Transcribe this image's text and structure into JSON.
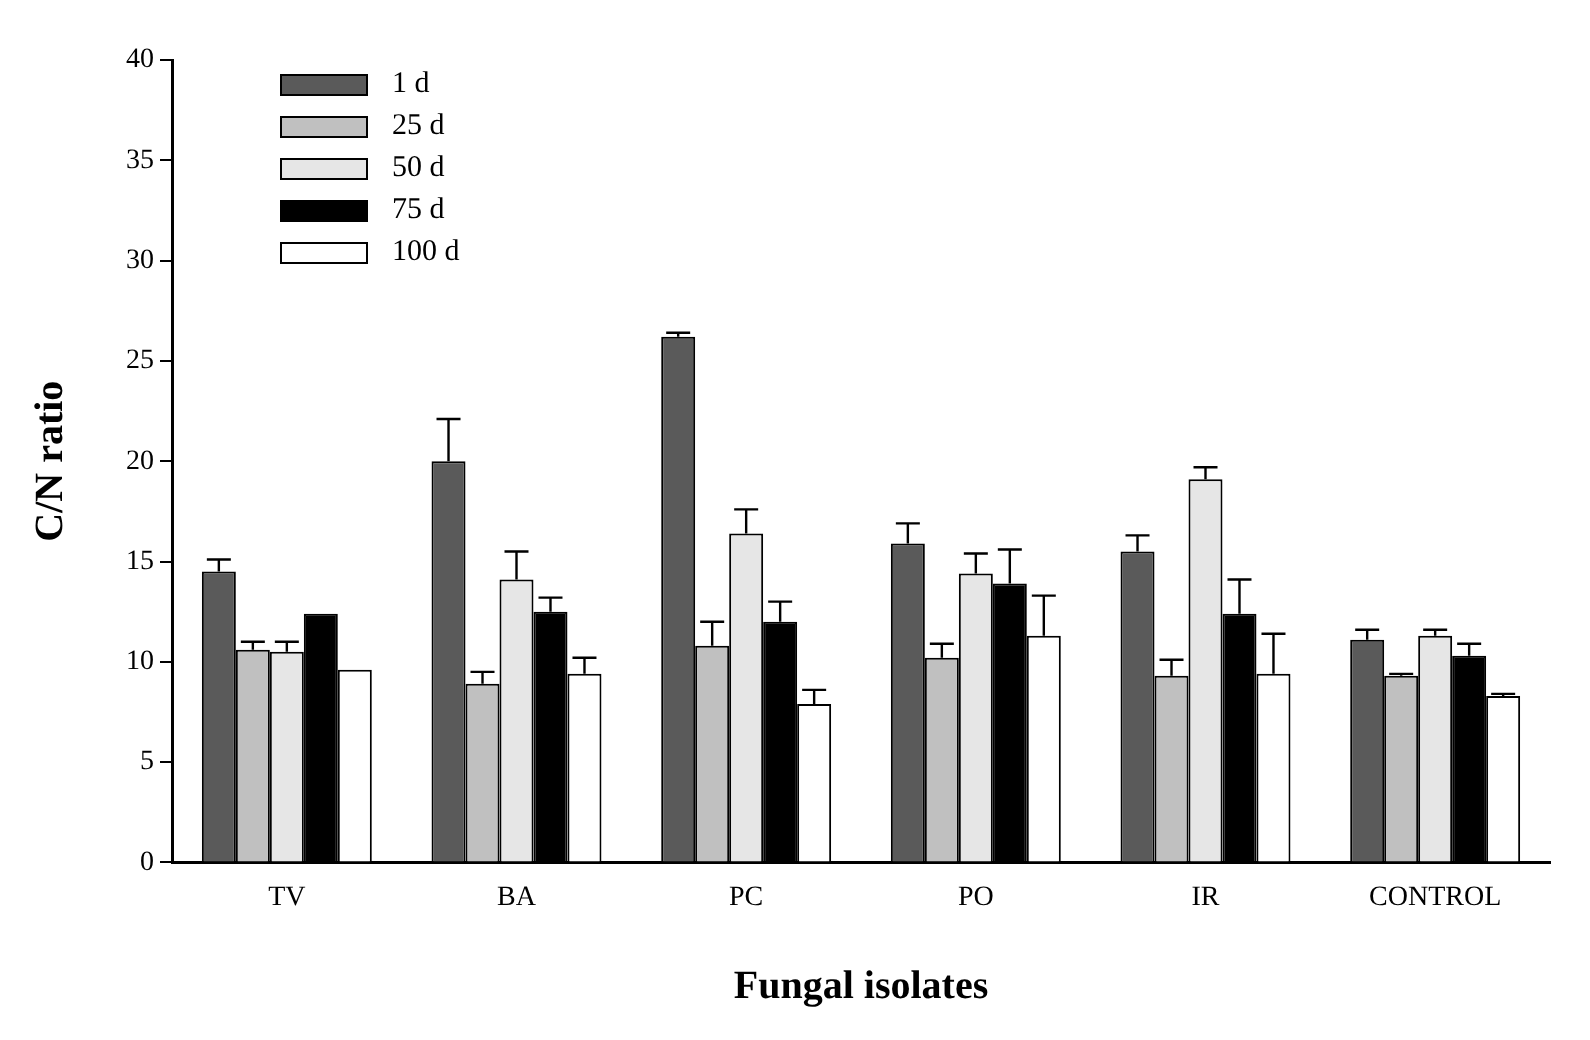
{
  "chart_data": {
    "type": "bar",
    "xlabel": "Fungal isolates",
    "ylabel": "C/N ratio",
    "categories": [
      "TV",
      "BA",
      "PC",
      "PO",
      "IR",
      "CONTROL"
    ],
    "series": [
      {
        "name": "1 d",
        "color": "#5a5a5a",
        "values": [
          14.5,
          20.0,
          26.2,
          15.9,
          15.5,
          11.1
        ],
        "errors": [
          [
            14.5,
            15.1
          ],
          [
            20.0,
            22.1
          ],
          [
            26.2,
            26.4
          ],
          [
            15.9,
            16.9
          ],
          [
            15.5,
            16.3
          ],
          [
            11.1,
            11.6
          ]
        ]
      },
      {
        "name": "25 d",
        "color": "#c0c0c0",
        "values": [
          10.6,
          8.9,
          10.8,
          10.2,
          9.3,
          9.3
        ],
        "errors": [
          [
            10.6,
            11.0
          ],
          [
            8.9,
            9.5
          ],
          [
            10.8,
            12.0
          ],
          [
            10.2,
            10.9
          ],
          [
            9.3,
            10.1
          ],
          [
            9.3,
            9.4
          ]
        ]
      },
      {
        "name": "50 d",
        "color": "#e6e6e6",
        "values": [
          10.5,
          14.1,
          16.4,
          14.4,
          19.1,
          11.3
        ],
        "errors": [
          [
            10.5,
            11.0
          ],
          [
            14.1,
            15.5
          ],
          [
            16.4,
            17.6
          ],
          [
            14.4,
            15.4
          ],
          [
            19.1,
            19.7
          ],
          [
            11.3,
            11.6
          ]
        ]
      },
      {
        "name": "75 d",
        "color": "#000000",
        "values": [
          12.4,
          12.5,
          12.0,
          13.9,
          12.4,
          10.3
        ],
        "errors": [
          null,
          [
            12.5,
            13.2
          ],
          [
            12.0,
            13.0
          ],
          [
            13.9,
            15.6
          ],
          [
            12.4,
            14.1
          ],
          [
            10.3,
            10.9
          ]
        ]
      },
      {
        "name": "100 d",
        "color": "#ffffff",
        "values": [
          9.6,
          9.4,
          7.9,
          11.3,
          9.4,
          8.3
        ],
        "errors": [
          null,
          [
            9.4,
            10.2
          ],
          [
            7.9,
            8.6
          ],
          [
            11.3,
            13.3
          ],
          [
            9.4,
            11.4
          ],
          [
            8.3,
            8.4
          ]
        ]
      }
    ],
    "ylim": [
      0,
      40
    ],
    "yticks": [
      0,
      5,
      10,
      15,
      20,
      25,
      30,
      35,
      40
    ],
    "grid": false,
    "legend": "top left"
  }
}
